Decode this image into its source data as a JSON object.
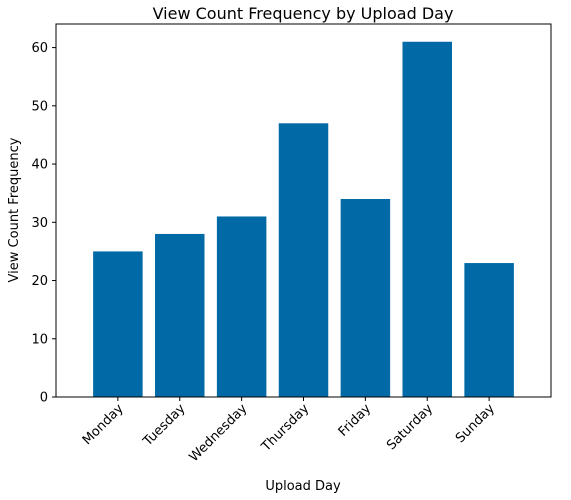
{
  "chart_data": {
    "type": "bar",
    "title": "View Count Frequency by Upload Day",
    "xlabel": "Upload Day",
    "ylabel": "View Count Frequency",
    "categories": [
      "Monday",
      "Tuesday",
      "Wednesday",
      "Thursday",
      "Friday",
      "Saturday",
      "Sunday"
    ],
    "values": [
      25,
      28,
      31,
      47,
      34,
      61,
      23
    ],
    "yticks": [
      0,
      10,
      20,
      30,
      40,
      50,
      60
    ],
    "ylim": [
      0,
      64.05
    ],
    "bar_color": "#0069a6",
    "grid": false,
    "legend": false
  }
}
